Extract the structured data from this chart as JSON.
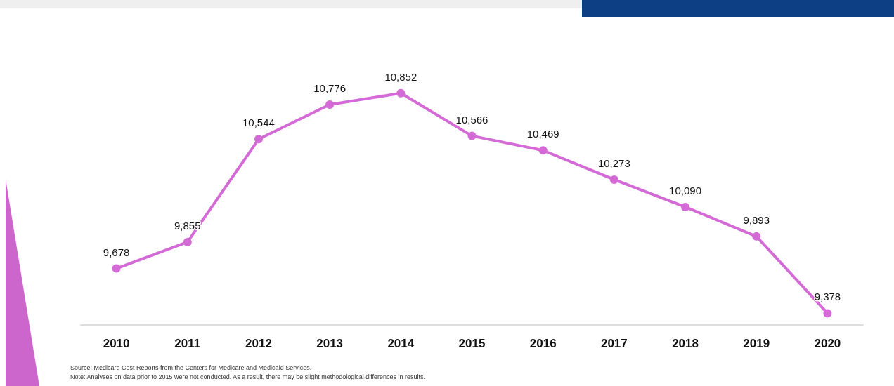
{
  "chart_data": {
    "type": "line",
    "categories": [
      "2010",
      "2011",
      "2012",
      "2013",
      "2014",
      "2015",
      "2016",
      "2017",
      "2018",
      "2019",
      "2020"
    ],
    "series": [
      {
        "color": "#d36ad6",
        "values": [
          9678,
          9855,
          10544,
          10776,
          10852,
          10566,
          10469,
          10273,
          10090,
          9893,
          9378
        ],
        "value_labels": [
          "9,678",
          "9,855",
          "10,544",
          "10,776",
          "10,852",
          "10,566",
          "10,469",
          "10,273",
          "10,090",
          "9,893",
          "9,378"
        ]
      }
    ],
    "marker": "circle",
    "annotations": [
      "Source: Medicare Cost Reports from the Centers for Medicare and Medicaid Services.",
      "Note: Analyses on data prior to 2015 were not conducted. As a result, there may be slight methodological differences in results."
    ]
  }
}
